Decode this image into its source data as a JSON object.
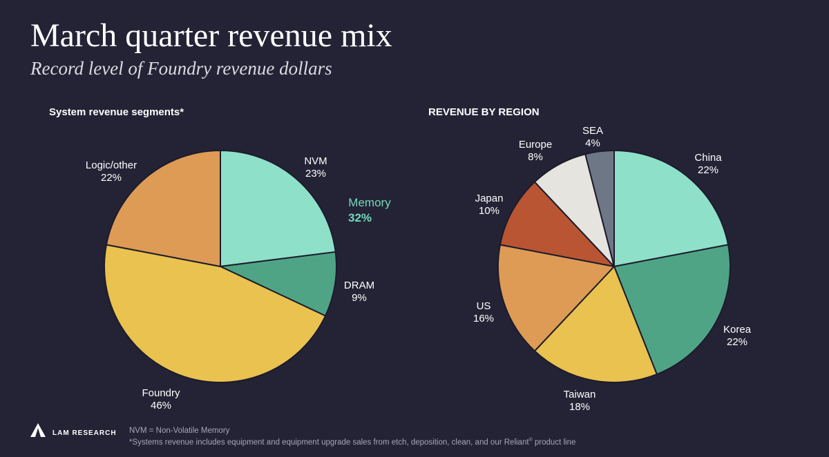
{
  "header": {
    "title": "March quarter revenue mix",
    "subtitle": "Record level of Foundry revenue dollars"
  },
  "chart_data": [
    {
      "type": "pie",
      "title": "System revenue segments*",
      "slices": [
        {
          "label": "NVM",
          "value": 23,
          "display": "23%",
          "color": "#8ee0c9"
        },
        {
          "label": "DRAM",
          "value": 9,
          "display": "9%",
          "color": "#4fa486"
        },
        {
          "label": "Foundry",
          "value": 46,
          "display": "46%",
          "color": "#e9c24f"
        },
        {
          "label": "Logic/other",
          "value": 22,
          "display": "22%",
          "color": "#dd9b55"
        }
      ],
      "group_annotation": {
        "label": "Memory",
        "value": "32%",
        "color": "#74d9bb"
      }
    },
    {
      "type": "pie",
      "title": "REVENUE BY REGION",
      "slices": [
        {
          "label": "China",
          "value": 22,
          "display": "22%",
          "color": "#8ee0c9"
        },
        {
          "label": "Korea",
          "value": 22,
          "display": "22%",
          "color": "#4fa486"
        },
        {
          "label": "Taiwan",
          "value": 18,
          "display": "18%",
          "color": "#e9c24f"
        },
        {
          "label": "US",
          "value": 16,
          "display": "16%",
          "color": "#dd9b55"
        },
        {
          "label": "Japan",
          "value": 10,
          "display": "10%",
          "color": "#b95532"
        },
        {
          "label": "Europe",
          "value": 8,
          "display": "8%",
          "color": "#e6e4df"
        },
        {
          "label": "SEA",
          "value": 4,
          "display": "4%",
          "color": "#6e7786"
        }
      ]
    }
  ],
  "footer": {
    "logo_text": "LAM RESEARCH",
    "note1": "NVM = Non-Volatile Memory",
    "note2_pre": "*Systems revenue includes equipment and equipment upgrade sales from etch, deposition, clean, and our Reliant",
    "note2_sup": "®",
    "note2_post": " product line"
  }
}
